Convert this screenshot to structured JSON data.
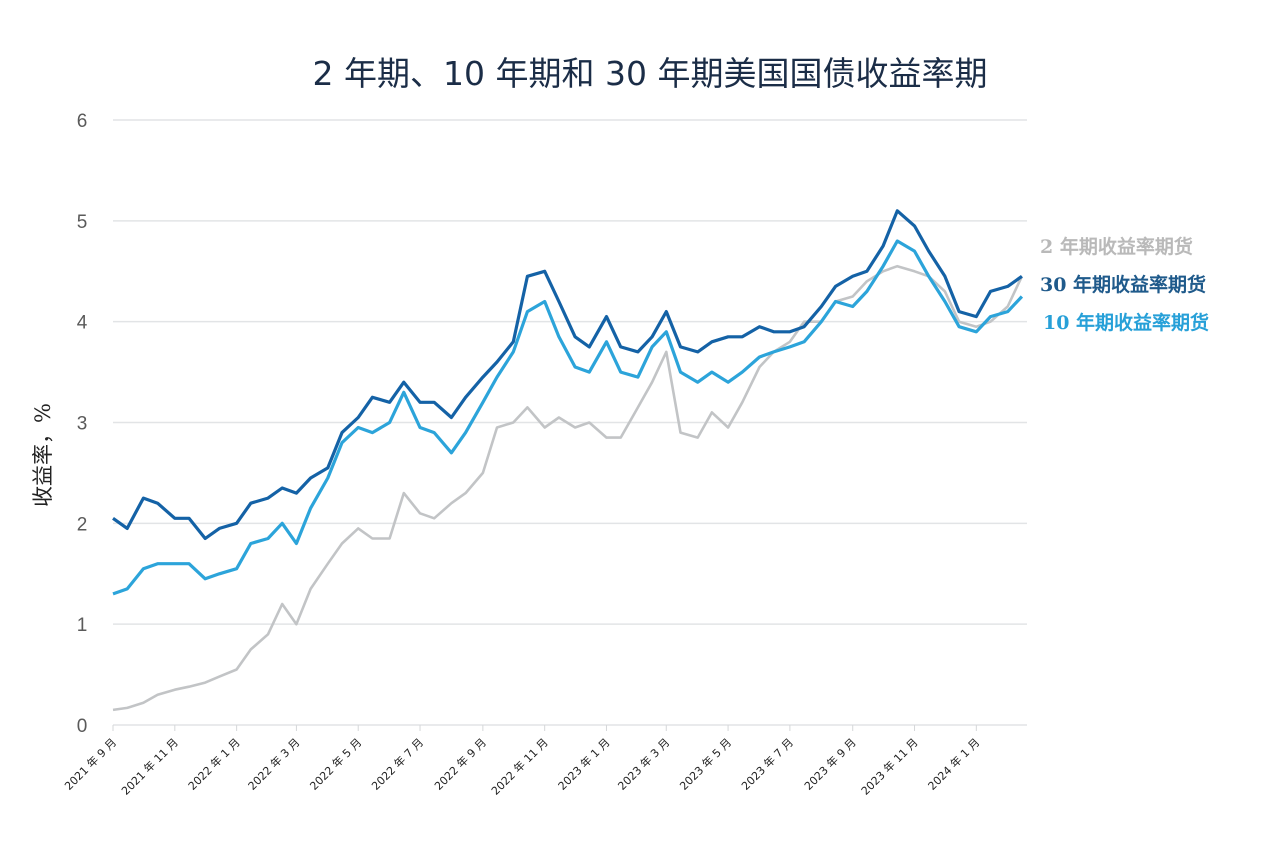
{
  "chart_data": {
    "type": "line",
    "title": "2 年期、10 年期和 30 年期美国国债收益率期",
    "xlabel": "",
    "ylabel": "收益率，%",
    "ylim": [
      0,
      6
    ],
    "xlim": [
      "2021-09-01",
      "2024-02-20"
    ],
    "yticks": [
      "0",
      "1",
      "2",
      "3",
      "4",
      "5",
      "6"
    ],
    "grid": true,
    "legend_placement": "right",
    "xticks": [
      {
        "date": "2021-09-01",
        "label": "2021 年 9 月"
      },
      {
        "date": "2021-11-01",
        "label": "2021 年 11 月"
      },
      {
        "date": "2022-01-01",
        "label": "2022 年 1 月"
      },
      {
        "date": "2022-03-01",
        "label": "2022 年 3 月"
      },
      {
        "date": "2022-05-01",
        "label": "2022 年 5 月"
      },
      {
        "date": "2022-07-01",
        "label": "2022 年 7 月"
      },
      {
        "date": "2022-09-01",
        "label": "2022 年 9 月"
      },
      {
        "date": "2022-11-01",
        "label": "2022 年 11 月"
      },
      {
        "date": "2023-01-01",
        "label": "2023 年 1 月"
      },
      {
        "date": "2023-03-01",
        "label": "2023 年 3 月"
      },
      {
        "date": "2023-05-01",
        "label": "2023 年 5 月"
      },
      {
        "date": "2023-07-01",
        "label": "2023 年 7 月"
      },
      {
        "date": "2023-09-01",
        "label": "2023 年 9 月"
      },
      {
        "date": "2023-11-01",
        "label": "2023 年 11 月"
      },
      {
        "date": "2024-01-01",
        "label": "2024 年 1 月"
      }
    ],
    "x": [
      "2021-09-01",
      "2021-09-15",
      "2021-10-01",
      "2021-10-15",
      "2021-11-01",
      "2021-11-15",
      "2021-12-01",
      "2021-12-15",
      "2022-01-01",
      "2022-01-15",
      "2022-02-01",
      "2022-02-15",
      "2022-03-01",
      "2022-03-15",
      "2022-04-01",
      "2022-04-15",
      "2022-05-01",
      "2022-05-15",
      "2022-06-01",
      "2022-06-15",
      "2022-07-01",
      "2022-07-15",
      "2022-08-01",
      "2022-08-15",
      "2022-09-01",
      "2022-09-15",
      "2022-10-01",
      "2022-10-15",
      "2022-11-01",
      "2022-11-15",
      "2022-12-01",
      "2022-12-15",
      "2023-01-01",
      "2023-01-15",
      "2023-02-01",
      "2023-02-15",
      "2023-03-01",
      "2023-03-15",
      "2023-04-01",
      "2023-04-15",
      "2023-05-01",
      "2023-05-15",
      "2023-06-01",
      "2023-06-15",
      "2023-07-01",
      "2023-07-15",
      "2023-08-01",
      "2023-08-15",
      "2023-09-01",
      "2023-09-15",
      "2023-10-01",
      "2023-10-15",
      "2023-11-01",
      "2023-11-15",
      "2023-12-01",
      "2023-12-15",
      "2024-01-01",
      "2024-01-15",
      "2024-02-01",
      "2024-02-15"
    ],
    "series": [
      {
        "name": "2 年期收益率期货",
        "color": "#c2c4c6",
        "label_color": "#b9b9b9",
        "values": [
          0.15,
          0.17,
          0.22,
          0.3,
          0.35,
          0.38,
          0.42,
          0.48,
          0.55,
          0.75,
          0.9,
          1.2,
          1.0,
          1.35,
          1.6,
          1.8,
          1.95,
          1.85,
          1.85,
          2.3,
          2.1,
          2.05,
          2.2,
          2.3,
          2.5,
          2.95,
          3.0,
          3.15,
          2.95,
          3.05,
          2.95,
          3.0,
          2.85,
          2.85,
          3.15,
          3.4,
          3.7,
          2.9,
          2.85,
          3.1,
          2.95,
          3.2,
          3.55,
          3.7,
          3.8,
          4.0,
          4.0,
          4.2,
          4.25,
          4.4,
          4.5,
          4.55,
          4.5,
          4.45,
          4.3,
          4.0,
          3.95,
          4.0,
          4.15,
          4.45
        ]
      },
      {
        "name": "10 年期收益率期货",
        "color": "#2ca4da",
        "label_color": "#27a0d8",
        "values": [
          1.3,
          1.35,
          1.55,
          1.6,
          1.6,
          1.6,
          1.45,
          1.5,
          1.55,
          1.8,
          1.85,
          2.0,
          1.8,
          2.15,
          2.45,
          2.8,
          2.95,
          2.9,
          3.0,
          3.3,
          2.95,
          2.9,
          2.7,
          2.9,
          3.2,
          3.45,
          3.7,
          4.1,
          4.2,
          3.85,
          3.55,
          3.5,
          3.8,
          3.5,
          3.45,
          3.75,
          3.9,
          3.5,
          3.4,
          3.5,
          3.4,
          3.5,
          3.65,
          3.7,
          3.75,
          3.8,
          4.0,
          4.2,
          4.15,
          4.3,
          4.55,
          4.8,
          4.7,
          4.45,
          4.2,
          3.95,
          3.9,
          4.05,
          4.1,
          4.25
        ]
      },
      {
        "name": "30 年期收益率期货",
        "color": "#1462a6",
        "label_color": "#1f5a8b",
        "values": [
          2.05,
          1.95,
          2.25,
          2.2,
          2.05,
          2.05,
          1.85,
          1.95,
          2.0,
          2.2,
          2.25,
          2.35,
          2.3,
          2.45,
          2.55,
          2.9,
          3.05,
          3.25,
          3.2,
          3.4,
          3.2,
          3.2,
          3.05,
          3.25,
          3.45,
          3.6,
          3.8,
          4.45,
          4.5,
          4.2,
          3.85,
          3.75,
          4.05,
          3.75,
          3.7,
          3.85,
          4.1,
          3.75,
          3.7,
          3.8,
          3.85,
          3.85,
          3.95,
          3.9,
          3.9,
          3.95,
          4.15,
          4.35,
          4.45,
          4.5,
          4.75,
          5.1,
          4.95,
          4.7,
          4.45,
          4.1,
          4.05,
          4.3,
          4.35,
          4.45
        ]
      }
    ],
    "legend_order": [
      0,
      2,
      1
    ]
  }
}
